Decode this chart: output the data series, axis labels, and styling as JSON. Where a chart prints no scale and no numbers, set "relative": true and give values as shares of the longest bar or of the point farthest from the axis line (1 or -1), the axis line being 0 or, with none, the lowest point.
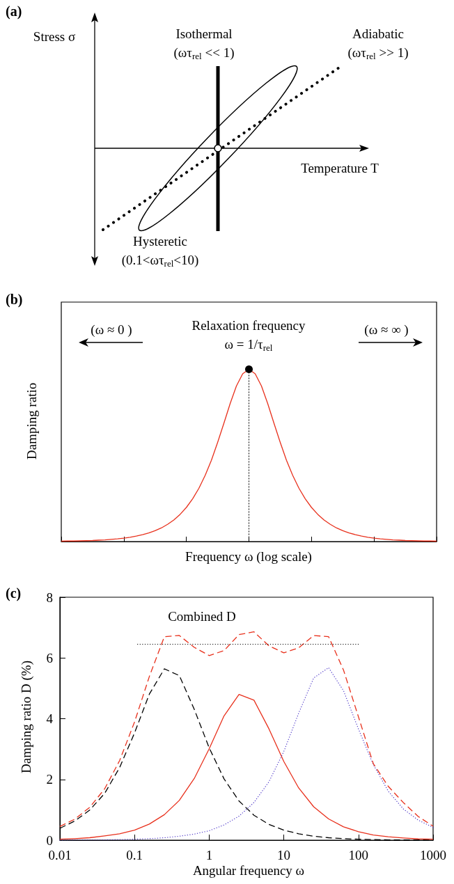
{
  "chart_data": [
    {
      "type": "other",
      "title": "(a)",
      "xlabel": "Temperature T",
      "ylabel": "Stress σ",
      "annotations": [
        "Isothermal\n(ωτ$_{rel}$ << 1)",
        "Adiabatic\n(ωτ$_{rel}$ >> 1)",
        "Hysteretic\n(0.1<ωτ$_{rel}$<10)"
      ]
    },
    {
      "type": "line",
      "title": "(b)",
      "xlabel": "Frequency ω (log scale)",
      "ylabel": "Damping ratio",
      "relative": true,
      "annotations": [
        "(ω ≈ 0 )",
        "Relaxation frequency\nω = 1/τ$_{rel}$",
        "(ω ≈ ∞ )"
      ],
      "categories": [
        null,
        null,
        null,
        null,
        null,
        null,
        null,
        null,
        null,
        null,
        null,
        null,
        null,
        null,
        null,
        null,
        null,
        null,
        null,
        null,
        null,
        null,
        null,
        null,
        null,
        null,
        null,
        null,
        null,
        null,
        null,
        null,
        null,
        null,
        null,
        null,
        null,
        null,
        null,
        null,
        null,
        null,
        null,
        null,
        null,
        null,
        null,
        null,
        null,
        null,
        null,
        null,
        null,
        null,
        null,
        null,
        null,
        null,
        null,
        null,
        null
      ],
      "series": [
        {
          "color": "#e8301c",
          "values": [
            0.002,
            0.003,
            0.003,
            0.004,
            0.005,
            0.006,
            0.008,
            0.01,
            0.013,
            0.016,
            0.02,
            0.025,
            0.032,
            0.04,
            0.05,
            0.063,
            0.079,
            0.1,
            0.125,
            0.158,
            0.198,
            0.248,
            0.309,
            0.384,
            0.472,
            0.576,
            0.687,
            0.801,
            0.903,
            0.974,
            1,
            0.974,
            0.903,
            0.801,
            0.687,
            0.576,
            0.472,
            0.384,
            0.309,
            0.248,
            0.198,
            0.158,
            0.125,
            0.1,
            0.079,
            0.063,
            0.05,
            0.04,
            0.032,
            0.025,
            0.02,
            0.016,
            0.013,
            0.01,
            0.008,
            0.006,
            0.005,
            0.004,
            0.003,
            0.003,
            0.002
          ]
        }
      ]
    },
    {
      "type": "line",
      "title": "(c)",
      "xlabel": "Angular frequency ω",
      "ylabel": "Damping ratio D (%)",
      "log": "x",
      "x": [
        0.01,
        0.0158,
        0.0251,
        0.0398,
        0.0631,
        0.1,
        0.158,
        0.251,
        0.398,
        0.631,
        1,
        1.58,
        2.51,
        3.98,
        6.31,
        10,
        15.8,
        25.1,
        39.8,
        63.1,
        100,
        158,
        251,
        398,
        631,
        1000
      ],
      "xlim": [
        0.01,
        1000
      ],
      "xticks": [
        0.01,
        0.1,
        1,
        10,
        100,
        1000
      ],
      "ylim": [
        0,
        8
      ],
      "yticks": [
        0,
        2,
        4,
        6,
        8
      ],
      "annotations": [
        "Combined D"
      ],
      "series": [
        {
          "color": "#000000",
          "line_style": "dashed",
          "values": [
            0.39,
            0.63,
            0.99,
            1.54,
            2.39,
            3.53,
            4.81,
            5.64,
            5.42,
            4.31,
            3.04,
            2.02,
            1.29,
            0.82,
            0.52,
            0.33,
            0.21,
            0.13,
            0.08,
            0.05,
            0.03,
            0.02,
            0.01,
            0.01,
            0.01,
            0
          ]
        },
        {
          "color": "#e8301c",
          "line_style": "solid",
          "values": [
            0.03,
            0.05,
            0.08,
            0.14,
            0.21,
            0.33,
            0.53,
            0.84,
            1.31,
            2.03,
            3.01,
            4.09,
            4.8,
            4.61,
            3.67,
            2.59,
            1.72,
            1.1,
            0.7,
            0.44,
            0.28,
            0.17,
            0.11,
            0.07,
            0.04,
            0.03
          ]
        },
        {
          "color": "#4b35c8",
          "line_style": "dotted",
          "values": [
            0,
            0.01,
            0.01,
            0.01,
            0.02,
            0.03,
            0.05,
            0.08,
            0.13,
            0.2,
            0.31,
            0.5,
            0.79,
            1.24,
            1.92,
            2.92,
            4.18,
            5.34,
            5.68,
            4.92,
            3.66,
            2.49,
            1.61,
            1.03,
            0.66,
            0.42
          ]
        },
        {
          "color": "#e8301c",
          "line_style": "dashed",
          "values": [
            0.45,
            0.69,
            1.08,
            1.69,
            2.62,
            3.89,
            5.39,
            6.7,
            6.74,
            6.35,
            6.08,
            6.24,
            6.77,
            6.86,
            6.4,
            6.17,
            6.33,
            6.74,
            6.7,
            5.6,
            4.06,
            2.52,
            1.77,
            1.24,
            0.78,
            0.46
          ]
        },
        {
          "color": "#000000",
          "line_style": "dotted",
          "x": [
            0.11,
            100
          ],
          "values": [
            6.45,
            6.45
          ]
        }
      ]
    }
  ]
}
